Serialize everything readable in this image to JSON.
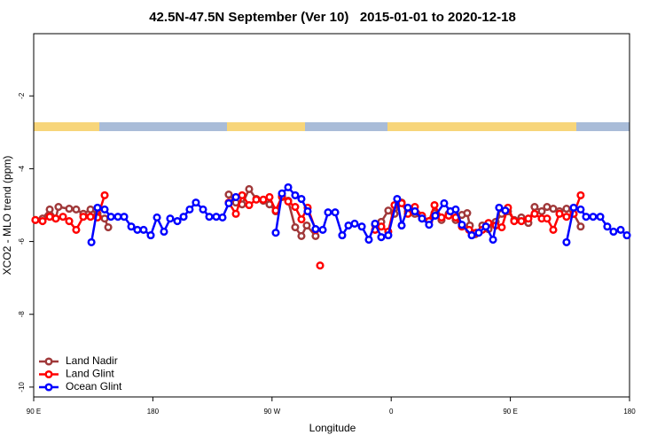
{
  "chart_data": {
    "type": "line",
    "title": "42.5N-47.5N September (Ver 10)   2015-01-01 to 2020-12-18",
    "xlabel": "Longitude",
    "ylabel": "XCO2 - MLO trend (ppm)",
    "xlim": [
      90,
      540
    ],
    "ylim": [
      -10.27,
      -0.29
    ],
    "xticks": [
      {
        "value": 90,
        "label": "90 E"
      },
      {
        "value": 180,
        "label": "180"
      },
      {
        "value": 270,
        "label": "90 W"
      },
      {
        "value": 360,
        "label": "0"
      },
      {
        "value": 450,
        "label": "90 E"
      },
      {
        "value": 540,
        "label": "180"
      }
    ],
    "yticks": [
      -2,
      -4,
      -6,
      -8,
      -10
    ],
    "legend": "lower left",
    "series": [
      {
        "name": "Land Nadir",
        "color": "#a0393a",
        "x": [
          91.3,
          96.7,
          102.1,
          106.7,
          108.7,
          116.8,
          122.1,
          127.5,
          132.9,
          138.2,
          143.6,
          146.3,
          null,
          237.3,
          242.7,
          247.4,
          252.7,
          258.1,
          263.4,
          268.1,
          272.8,
          277.5,
          282.2,
          287.5,
          292.2,
          296.2,
          302.9,
          null,
          347.8,
          352.5,
          357.8,
          362.5,
          367.9,
          372.6,
          377.9,
          383.3,
          388.6,
          392.7,
          398.0,
          403.4,
          408.7,
          413.4,
          417.4,
          419.4,
          423.4,
          428.8,
          433.5,
          438.9,
          443.5,
          448.2,
          452.9,
          458.3,
          463.6,
          468.3,
          473.7,
          477.7,
          482.4,
          487.1,
          492.4,
          497.8,
          503.1
        ],
        "values": [
          -5.41,
          -5.37,
          -5.12,
          -5.37,
          -5.05,
          -5.1,
          -5.12,
          -5.24,
          -5.12,
          -5.24,
          -5.37,
          -5.61,
          null,
          -4.71,
          -4.93,
          -4.98,
          -4.56,
          -4.83,
          -4.88,
          -4.98,
          -5.17,
          -4.78,
          -4.88,
          -5.61,
          -5.85,
          -5.56,
          -5.85,
          null,
          -5.54,
          -5.46,
          -5.15,
          -5.24,
          -4.93,
          -5.17,
          -5.24,
          -5.37,
          -5.44,
          -5.22,
          -5.41,
          -5.24,
          -5.41,
          -5.27,
          -5.22,
          -5.56,
          -5.8,
          -5.56,
          -5.66,
          -5.46,
          -5.24,
          -5.17,
          -5.41,
          -5.34,
          -5.49,
          -5.05,
          -5.17,
          -5.05,
          -5.1,
          -5.17,
          -5.1,
          -5.24,
          -5.59
        ]
      },
      {
        "name": "Land Glint",
        "color": "#ff0000",
        "x": [
          91.3,
          96.7,
          102.1,
          106.7,
          112.1,
          116.8,
          122.1,
          127.5,
          132.9,
          138.2,
          143.6,
          null,
          237.3,
          242.7,
          247.4,
          252.7,
          258.1,
          263.4,
          268.1,
          272.8,
          277.5,
          282.2,
          287.5,
          292.2,
          296.9,
          302.9,
          null,
          306.3,
          null,
          347.8,
          352.5,
          357.8,
          362.5,
          367.9,
          372.6,
          377.9,
          383.3,
          388.6,
          392.7,
          398.0,
          403.4,
          408.7,
          413.4,
          418.8,
          424.1,
          428.8,
          433.5,
          438.9,
          443.5,
          448.2,
          452.9,
          458.3,
          463.6,
          468.3,
          473.7,
          477.7,
          482.4,
          487.1,
          492.4,
          497.8,
          503.1
        ],
        "values": [
          -5.41,
          -5.44,
          -5.32,
          -5.37,
          -5.32,
          -5.44,
          -5.68,
          -5.32,
          -5.32,
          -5.34,
          -4.73,
          null,
          -4.93,
          -5.24,
          -4.73,
          -5.0,
          -4.85,
          -4.85,
          -4.78,
          -5.15,
          -4.76,
          -4.9,
          -5.05,
          -5.39,
          -5.07,
          -5.68,
          null,
          -6.66,
          null,
          -5.68,
          -5.59,
          -5.73,
          -5.0,
          -4.95,
          -5.24,
          -5.05,
          -5.29,
          -5.44,
          -5.0,
          -5.34,
          -5.29,
          -5.34,
          -5.59,
          -5.68,
          -5.76,
          -5.68,
          -5.49,
          -5.56,
          -5.61,
          -5.07,
          -5.44,
          -5.44,
          -5.37,
          -5.24,
          -5.37,
          -5.37,
          -5.68,
          -5.24,
          -5.32,
          -5.24,
          -4.73
        ]
      },
      {
        "name": "Ocean Glint",
        "color": "#0000ff",
        "x": [
          133.6,
          138.2,
          143.6,
          148.3,
          153.6,
          158.3,
          163.7,
          168.3,
          173.0,
          178.4,
          183.1,
          188.4,
          193.1,
          198.5,
          203.2,
          207.8,
          212.5,
          217.9,
          222.6,
          227.9,
          232.6,
          237.3,
          242.7,
          null,
          272.8,
          277.5,
          282.2,
          287.5,
          292.2,
          296.9,
          302.9,
          308.3,
          312.3,
          317.7,
          323.0,
          327.7,
          332.4,
          337.8,
          343.1,
          347.8,
          352.5,
          357.8,
          364.5,
          367.9,
          372.6,
          377.9,
          383.3,
          388.6,
          393.3,
          400.0,
          404.7,
          408.7,
          413.4,
          420.8,
          426.1,
          431.5,
          436.9,
          441.5,
          446.2,
          null,
          492.4,
          497.8,
          503.1,
          507.2,
          512.5,
          517.9,
          523.2,
          527.9,
          533.3,
          538.0
        ],
        "values": [
          -6.02,
          -5.07,
          -5.12,
          -5.32,
          -5.32,
          -5.32,
          -5.59,
          -5.68,
          -5.68,
          -5.83,
          -5.34,
          -5.73,
          -5.37,
          -5.44,
          -5.32,
          -5.12,
          -4.93,
          -5.12,
          -5.32,
          -5.32,
          -5.34,
          -4.95,
          -4.78,
          null,
          -5.76,
          -4.68,
          -4.51,
          -4.73,
          -4.83,
          -5.17,
          -5.66,
          -5.68,
          -5.2,
          -5.2,
          -5.83,
          -5.56,
          -5.51,
          -5.59,
          -5.95,
          -5.51,
          -5.88,
          -5.83,
          -4.83,
          -5.56,
          -5.07,
          -5.17,
          -5.37,
          -5.54,
          -5.29,
          -4.95,
          -5.17,
          -5.12,
          -5.54,
          -5.83,
          -5.76,
          -5.59,
          -5.95,
          -5.07,
          -5.15,
          null,
          -6.02,
          -5.07,
          -5.12,
          -5.32,
          -5.32,
          -5.32,
          -5.59,
          -5.73,
          -5.68,
          -5.83
        ]
      }
    ]
  }
}
